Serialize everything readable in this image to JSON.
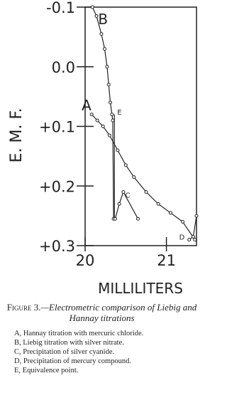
{
  "chart_data": {
    "type": "line",
    "y_label": "E. M. F.",
    "x_label": "MILLILITERS",
    "xlim": [
      20,
      21.37
    ],
    "xticks": [
      20,
      21
    ],
    "ylim": [
      -0.1,
      0.3
    ],
    "yticks": [
      {
        "value": -0.1,
        "label": "-0.1"
      },
      {
        "value": 0,
        "label": "0.0"
      },
      {
        "value": 0.1,
        "label": "+0.1"
      },
      {
        "value": 0.2,
        "label": "+0.2"
      },
      {
        "value": 0.3,
        "label": "+0.3"
      }
    ],
    "series": [
      {
        "name": "B",
        "color": "#222",
        "markers": true,
        "x": [
          20.09,
          20.14,
          20.2,
          20.24,
          20.27,
          20.29,
          20.31,
          20.33,
          20.34,
          20.35
        ],
        "values": [
          -0.1,
          -0.085,
          -0.055,
          -0.03,
          0.0,
          0.03,
          0.06,
          0.08,
          0.09,
          0.255
        ]
      },
      {
        "name": "A",
        "color": "#222",
        "markers": true,
        "x": [
          20.08,
          20.15,
          20.22,
          20.3,
          20.4,
          20.5,
          20.6,
          20.75,
          20.9,
          21.05,
          21.2,
          21.35
        ],
        "values": [
          0.08,
          0.09,
          0.1,
          0.115,
          0.14,
          0.165,
          0.185,
          0.21,
          0.23,
          0.245,
          0.26,
          0.29
        ]
      },
      {
        "name": "E",
        "color": "#222",
        "markers": false,
        "x": [
          20.36,
          20.36
        ],
        "values": [
          0.08,
          0.255
        ]
      },
      {
        "name": "C",
        "color": "#222",
        "markers": true,
        "x": [
          20.37,
          20.42,
          20.47,
          20.65
        ],
        "values": [
          0.255,
          0.23,
          0.21,
          0.255
        ]
      },
      {
        "name": "D",
        "color": "#222",
        "markers": true,
        "x": [
          21.28,
          21.33,
          21.37
        ],
        "values": [
          0.29,
          0.285,
          0.25
        ]
      }
    ]
  },
  "caption": {
    "figure": "Figure 3.",
    "title": "—Electrometric comparison of Liebig and Hannay titrations"
  },
  "notes": [
    "A, Hannay titration with mercuric chloride.",
    "B, Liebig titration with silver nitrate.",
    "C, Precipitation of silver cyanide.",
    "D, Precipitation of mercury compound.",
    "E, Equivalence point."
  ]
}
